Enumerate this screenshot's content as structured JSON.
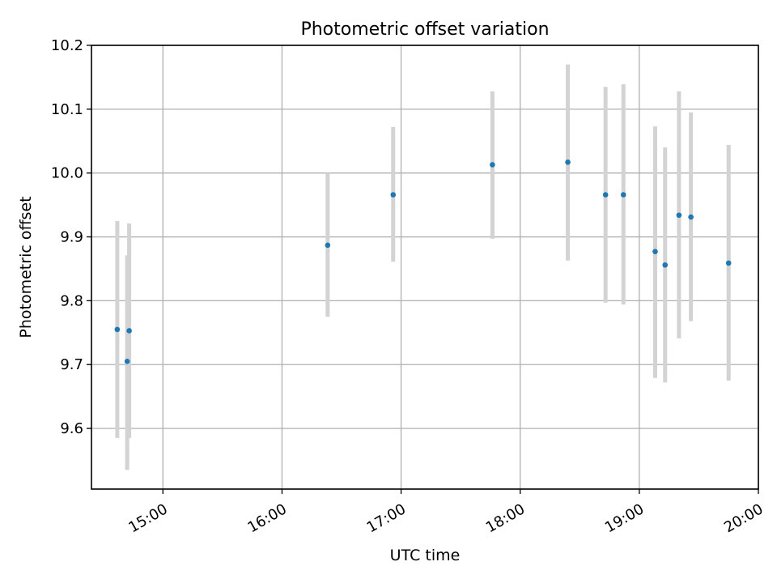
{
  "chart_data": {
    "type": "scatter",
    "title": "Photometric offset variation",
    "xlabel": "UTC time",
    "ylabel": "Photometric offset",
    "xlim": [
      "14:24",
      "20:00"
    ],
    "ylim": [
      9.505,
      10.2
    ],
    "x_ticks": [
      "15:00",
      "16:00",
      "17:00",
      "18:00",
      "19:00",
      "20:00"
    ],
    "y_ticks": [
      "9.6",
      "9.7",
      "9.8",
      "9.9",
      "10.0",
      "10.1",
      "10.2"
    ],
    "grid": true,
    "legend": "none",
    "point_color": "#1f77b4",
    "errorbar_color": "#d3d3d3",
    "points": [
      {
        "x": "14:37",
        "y": 9.755,
        "ylow": 9.585,
        "yhigh": 9.925
      },
      {
        "x": "14:43",
        "y": 9.753,
        "ylow": 9.585,
        "yhigh": 9.921
      },
      {
        "x": "14:42",
        "y": 9.705,
        "ylow": 9.535,
        "yhigh": 9.871
      },
      {
        "x": "16:23",
        "y": 9.887,
        "ylow": 9.775,
        "yhigh": 10.0
      },
      {
        "x": "16:56",
        "y": 9.966,
        "ylow": 9.861,
        "yhigh": 10.072
      },
      {
        "x": "17:46",
        "y": 10.013,
        "ylow": 9.897,
        "yhigh": 10.128
      },
      {
        "x": "18:24",
        "y": 10.017,
        "ylow": 9.863,
        "yhigh": 10.17
      },
      {
        "x": "18:43",
        "y": 9.966,
        "ylow": 9.797,
        "yhigh": 10.135
      },
      {
        "x": "18:52",
        "y": 9.966,
        "ylow": 9.794,
        "yhigh": 10.139
      },
      {
        "x": "19:08",
        "y": 9.877,
        "ylow": 9.679,
        "yhigh": 10.073
      },
      {
        "x": "19:13",
        "y": 9.856,
        "ylow": 9.672,
        "yhigh": 10.04
      },
      {
        "x": "19:20",
        "y": 9.934,
        "ylow": 9.741,
        "yhigh": 10.128
      },
      {
        "x": "19:26",
        "y": 9.931,
        "ylow": 9.768,
        "yhigh": 10.095
      },
      {
        "x": "19:45",
        "y": 9.859,
        "ylow": 9.675,
        "yhigh": 10.044
      }
    ]
  }
}
